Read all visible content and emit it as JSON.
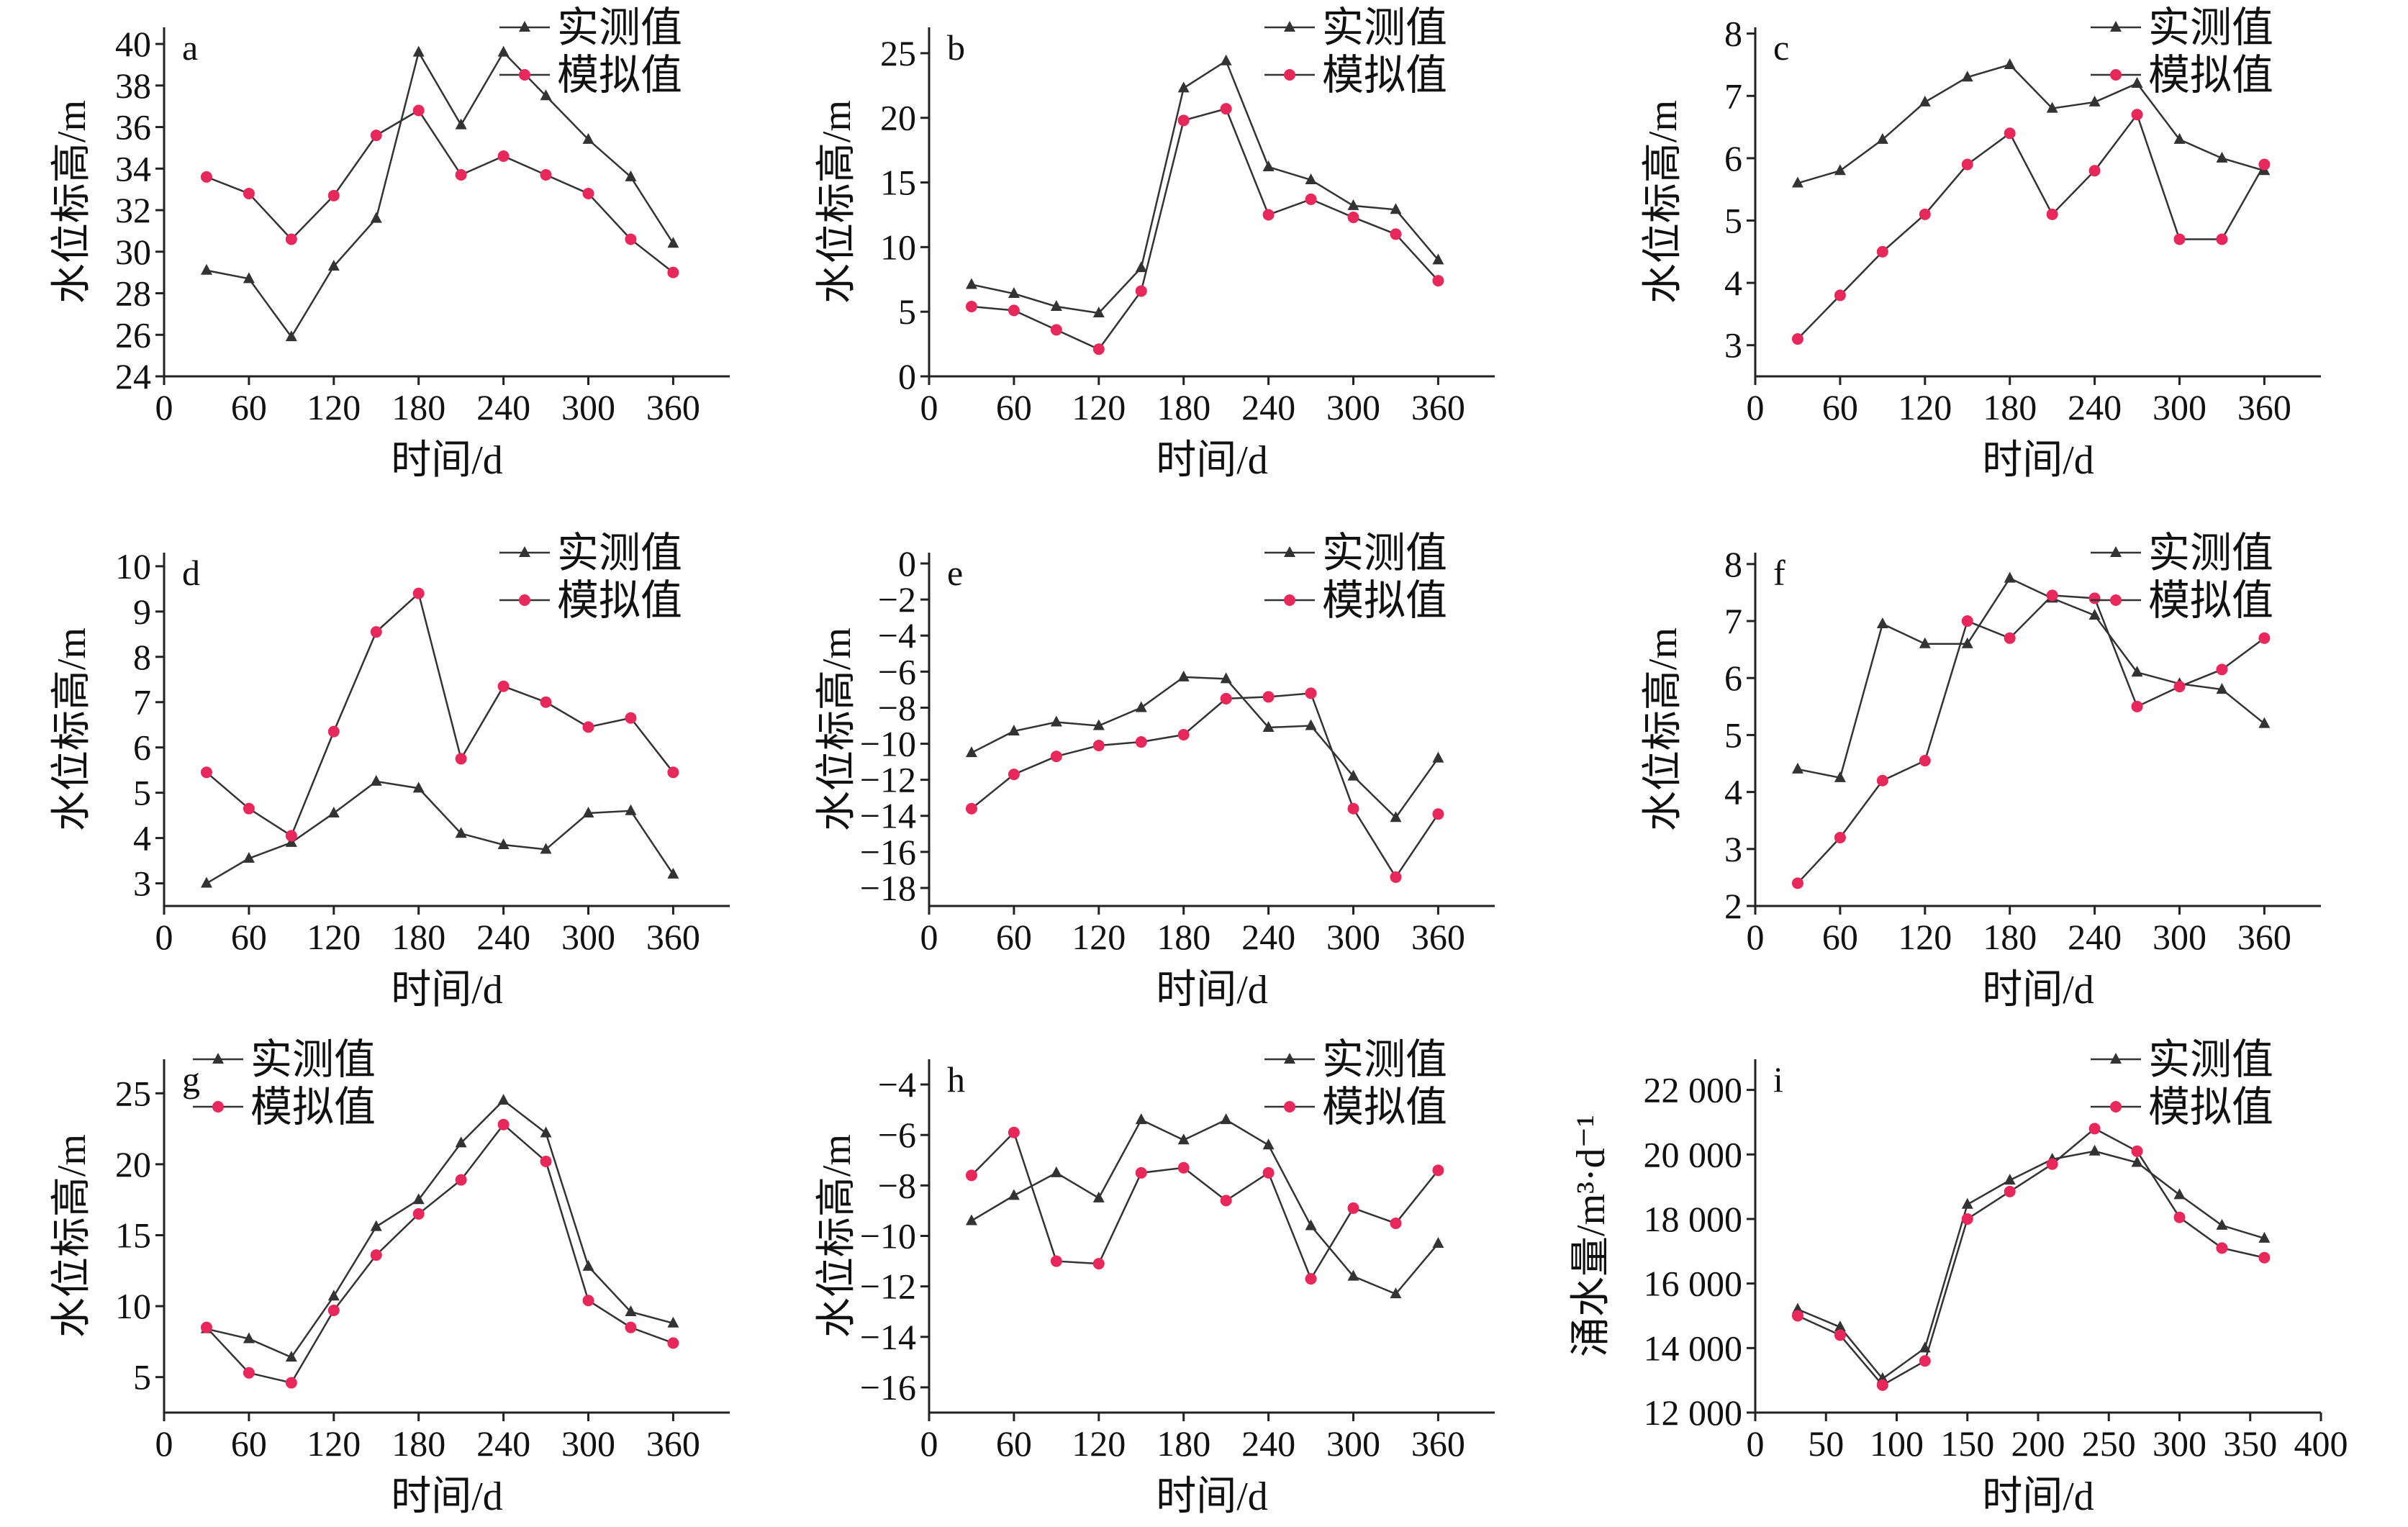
{
  "colors": {
    "measured": "#333333",
    "simulated": "#e8275a",
    "axis": "#222222"
  },
  "chart_data": [
    {
      "id": "a",
      "type": "line",
      "panel_label": "a",
      "xlabel": "时间/d",
      "ylabel": "水位标高/m",
      "xlim": [
        0,
        400
      ],
      "xticks": [
        0,
        60,
        120,
        180,
        240,
        300,
        360
      ],
      "ylim": [
        24,
        40.8
      ],
      "yticks": [
        24,
        26,
        28,
        30,
        32,
        34,
        36,
        38,
        40
      ],
      "legend": "top-right",
      "x": [
        30,
        60,
        90,
        120,
        150,
        180,
        210,
        240,
        270,
        300,
        330,
        360
      ],
      "series": [
        {
          "name": "实测值",
          "values": [
            29.1,
            28.7,
            25.9,
            29.3,
            31.6,
            39.6,
            36.1,
            39.6,
            37.5,
            35.4,
            33.6,
            30.4
          ]
        },
        {
          "name": "模拟值",
          "values": [
            33.6,
            32.8,
            30.6,
            32.7,
            35.6,
            36.8,
            33.7,
            34.6,
            33.7,
            32.8,
            30.6,
            29.0
          ]
        }
      ]
    },
    {
      "id": "b",
      "type": "line",
      "panel_label": "b",
      "xlabel": "时间/d",
      "ylabel": "水位标高/m",
      "xlim": [
        0,
        400
      ],
      "xticks": [
        0,
        60,
        120,
        180,
        240,
        300,
        360
      ],
      "ylim": [
        0,
        27
      ],
      "yticks": [
        0,
        5,
        10,
        15,
        20,
        25
      ],
      "legend": "top-right",
      "x": [
        30,
        60,
        90,
        120,
        150,
        180,
        210,
        240,
        270,
        300,
        330,
        360
      ],
      "series": [
        {
          "name": "实测值",
          "values": [
            7.1,
            6.4,
            5.4,
            4.9,
            8.4,
            22.3,
            24.4,
            16.2,
            15.2,
            13.2,
            12.9,
            9.0
          ]
        },
        {
          "name": "模拟值",
          "values": [
            5.4,
            5.1,
            3.6,
            2.1,
            6.6,
            19.8,
            20.7,
            12.5,
            13.7,
            12.3,
            11.0,
            7.4
          ]
        }
      ]
    },
    {
      "id": "c",
      "type": "line",
      "panel_label": "c",
      "xlabel": "时间/d",
      "ylabel": "水位标高/m",
      "xlim": [
        0,
        400
      ],
      "xticks": [
        0,
        60,
        120,
        180,
        240,
        300,
        360
      ],
      "ylim": [
        2.5,
        8.1
      ],
      "yticks": [
        3,
        4,
        5,
        6,
        7,
        8
      ],
      "legend": "top-right",
      "x": [
        30,
        60,
        90,
        120,
        150,
        180,
        210,
        240,
        270,
        300,
        330,
        360
      ],
      "series": [
        {
          "name": "实测值",
          "values": [
            5.6,
            5.8,
            6.3,
            6.9,
            7.3,
            7.5,
            6.8,
            6.9,
            7.2,
            6.3,
            6.0,
            5.8
          ]
        },
        {
          "name": "模拟值",
          "values": [
            3.1,
            3.8,
            4.5,
            5.1,
            5.9,
            6.4,
            5.1,
            5.8,
            6.7,
            4.7,
            4.7,
            5.9
          ]
        }
      ]
    },
    {
      "id": "d",
      "type": "line",
      "panel_label": "d",
      "xlabel": "时间/d",
      "ylabel": "水位标高/m",
      "xlim": [
        0,
        400
      ],
      "xticks": [
        0,
        60,
        120,
        180,
        240,
        300,
        360
      ],
      "ylim": [
        2.5,
        10.3
      ],
      "yticks": [
        3,
        4,
        5,
        6,
        7,
        8,
        9,
        10
      ],
      "legend": "top-right",
      "x": [
        30,
        60,
        90,
        120,
        150,
        180,
        210,
        240,
        270,
        300,
        330,
        360
      ],
      "series": [
        {
          "name": "实测值",
          "values": [
            3.0,
            3.55,
            3.9,
            4.55,
            5.25,
            5.1,
            4.1,
            3.85,
            3.75,
            4.55,
            4.6,
            3.2
          ]
        },
        {
          "name": "模拟值",
          "values": [
            5.45,
            4.65,
            4.05,
            6.35,
            8.55,
            9.4,
            5.75,
            7.35,
            7.0,
            6.45,
            6.65,
            5.45
          ]
        }
      ]
    },
    {
      "id": "e",
      "type": "line",
      "panel_label": "e",
      "xlabel": "时间/d",
      "ylabel": "水位标高/m",
      "xlim": [
        0,
        400
      ],
      "xticks": [
        0,
        60,
        120,
        180,
        240,
        300,
        360
      ],
      "ylim": [
        -19,
        0.6
      ],
      "yticks": [
        0,
        -2,
        -4,
        -6,
        -8,
        -10,
        -12,
        -14,
        -16,
        -18
      ],
      "legend": "top-right",
      "x": [
        30,
        60,
        90,
        120,
        150,
        180,
        210,
        240,
        270,
        300,
        330,
        360
      ],
      "series": [
        {
          "name": "实测值",
          "values": [
            -10.5,
            -9.3,
            -8.8,
            -9.0,
            -8.0,
            -6.3,
            -6.4,
            -9.1,
            -9.0,
            -11.8,
            -14.1,
            -10.8
          ]
        },
        {
          "name": "模拟值",
          "values": [
            -13.6,
            -11.7,
            -10.7,
            -10.1,
            -9.9,
            -9.5,
            -7.5,
            -7.4,
            -7.2,
            -13.6,
            -17.4,
            -13.9
          ]
        }
      ]
    },
    {
      "id": "f",
      "type": "line",
      "panel_label": "f",
      "xlabel": "时间/d",
      "ylabel": "水位标高/m",
      "xlim": [
        0,
        400
      ],
      "xticks": [
        0,
        60,
        120,
        180,
        240,
        300,
        360
      ],
      "ylim": [
        2,
        8.2
      ],
      "yticks": [
        2,
        3,
        4,
        5,
        6,
        7,
        8
      ],
      "legend": "top-right",
      "x": [
        30,
        60,
        90,
        120,
        150,
        180,
        210,
        240,
        270,
        300,
        330,
        360
      ],
      "series": [
        {
          "name": "实测值",
          "values": [
            4.4,
            4.25,
            6.95,
            6.6,
            6.6,
            7.75,
            7.4,
            7.1,
            6.1,
            5.9,
            5.8,
            5.2
          ]
        },
        {
          "name": "模拟值",
          "values": [
            2.4,
            3.2,
            4.2,
            4.55,
            7.0,
            6.7,
            7.45,
            7.4,
            5.5,
            5.85,
            6.15,
            6.7
          ]
        }
      ]
    },
    {
      "id": "g",
      "type": "line",
      "panel_label": "g",
      "xlabel": "时间/d",
      "ylabel": "水位标高/m",
      "xlim": [
        0,
        400
      ],
      "xticks": [
        0,
        60,
        120,
        180,
        240,
        300,
        360
      ],
      "ylim": [
        2.5,
        27.4
      ],
      "yticks": [
        5,
        10,
        15,
        20,
        25
      ],
      "legend": "top-left",
      "x": [
        30,
        60,
        90,
        120,
        150,
        180,
        210,
        240,
        270,
        300,
        330,
        360
      ],
      "series": [
        {
          "name": "实测值",
          "values": [
            8.4,
            7.7,
            6.4,
            10.7,
            15.6,
            17.5,
            21.5,
            24.5,
            22.2,
            12.8,
            9.6,
            8.8
          ]
        },
        {
          "name": "模拟值",
          "values": [
            8.5,
            5.3,
            4.6,
            9.7,
            13.6,
            16.5,
            18.9,
            22.8,
            20.2,
            10.4,
            8.5,
            7.4
          ]
        }
      ]
    },
    {
      "id": "h",
      "type": "line",
      "panel_label": "h",
      "xlabel": "时间/d",
      "ylabel": "水位标高/m",
      "xlim": [
        0,
        400
      ],
      "xticks": [
        0,
        60,
        120,
        180,
        240,
        300,
        360
      ],
      "ylim": [
        -17,
        -3
      ],
      "yticks": [
        -4,
        -6,
        -8,
        -10,
        -12,
        -14,
        -16
      ],
      "legend": "top-right",
      "x": [
        30,
        60,
        90,
        120,
        150,
        180,
        210,
        240,
        270,
        300,
        330,
        360
      ],
      "series": [
        {
          "name": "实测值",
          "values": [
            -9.4,
            -8.4,
            -7.5,
            -8.5,
            -5.4,
            -6.2,
            -5.4,
            -6.4,
            -9.6,
            -11.6,
            -12.3,
            -10.3
          ]
        },
        {
          "name": "模拟值",
          "values": [
            -7.6,
            -5.9,
            -11.0,
            -11.1,
            -7.5,
            -7.3,
            -8.6,
            -7.5,
            -11.7,
            -8.9,
            -9.5,
            -7.4
          ]
        }
      ]
    },
    {
      "id": "i",
      "type": "line",
      "panel_label": "i",
      "xlabel": "时间/d",
      "ylabel": "涌水量/m³·d⁻¹",
      "xlim": [
        0,
        400
      ],
      "xticks": [
        0,
        50,
        100,
        150,
        200,
        250,
        300,
        350,
        400
      ],
      "ylim": [
        12000,
        22950
      ],
      "yticks": [
        12000,
        14000,
        16000,
        18000,
        20000,
        22000
      ],
      "ytick_labels": [
        "12 000",
        "14 000",
        "16 000",
        "18 000",
        "20 000",
        "22 000"
      ],
      "legend": "top-right",
      "x": [
        30,
        60,
        90,
        120,
        150,
        180,
        210,
        240,
        270,
        300,
        330,
        360
      ],
      "series": [
        {
          "name": "实测值",
          "values": [
            15200,
            14650,
            13050,
            14000,
            18450,
            19200,
            19850,
            20100,
            19750,
            18750,
            17800,
            17400
          ]
        },
        {
          "name": "模拟值",
          "values": [
            15000,
            14400,
            12850,
            13600,
            18000,
            18850,
            19700,
            20800,
            20100,
            18050,
            17100,
            16800
          ]
        }
      ]
    }
  ]
}
